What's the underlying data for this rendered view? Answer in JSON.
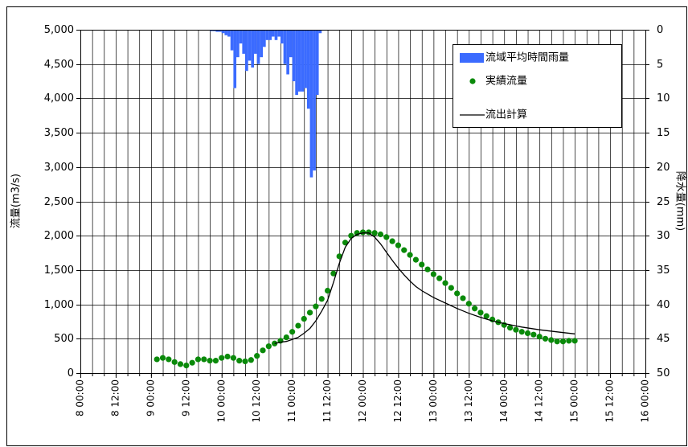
{
  "chart_data": {
    "type": "combo",
    "y_label": "流量(m3/s)",
    "y2_label": "降水量(mm)",
    "xlim": [
      "8 00:00",
      "16 00:00"
    ],
    "xticks": [
      "8 00:00",
      "8 12:00",
      "9 00:00",
      "9 12:00",
      "10 00:00",
      "10 12:00",
      "11 00:00",
      "11 12:00",
      "12 00:00",
      "12 12:00",
      "13 00:00",
      "13 12:00",
      "14 00:00",
      "14 12:00",
      "15 00:00",
      "15 12:00",
      "16 00:00"
    ],
    "xgrid": [
      "8 00:00",
      "8 04:00",
      "8 08:00",
      "8 12:00",
      "8 16:00",
      "8 20:00",
      "9 00:00",
      "9 04:00",
      "9 08:00",
      "9 12:00",
      "9 16:00",
      "9 20:00",
      "10 00:00",
      "10 04:00",
      "10 08:00",
      "10 12:00",
      "10 16:00",
      "10 20:00",
      "11 00:00",
      "11 04:00",
      "11 08:00",
      "11 12:00",
      "11 16:00",
      "11 20:00",
      "12 00:00",
      "12 04:00",
      "12 08:00",
      "12 12:00",
      "12 16:00",
      "12 20:00",
      "13 00:00",
      "13 04:00",
      "13 08:00",
      "13 12:00",
      "13 16:00",
      "13 20:00",
      "14 00:00",
      "14 04:00",
      "14 08:00",
      "14 12:00",
      "14 16:00",
      "14 20:00",
      "15 00:00",
      "15 04:00",
      "15 08:00",
      "15 12:00",
      "15 16:00",
      "15 20:00",
      "16 00:00"
    ],
    "ylim": [
      0,
      5000
    ],
    "yticks": [
      0,
      {
        "value": 500,
        "label": "500"
      },
      {
        "value": 1000,
        "label": "1,000"
      },
      {
        "value": 1500,
        "label": "1,500"
      },
      {
        "value": 2000,
        "label": "2,000"
      },
      {
        "value": 2500,
        "label": "2,500"
      },
      {
        "value": 3000,
        "label": "3,000"
      },
      {
        "value": 3500,
        "label": "3,500"
      },
      {
        "value": 4000,
        "label": "4,000"
      },
      {
        "value": 4500,
        "label": "4,500"
      },
      {
        "value": 5000,
        "label": "5,000"
      }
    ],
    "y2lim": [
      0,
      50
    ],
    "y2_inverted": true,
    "y2ticks": [
      0,
      5,
      10,
      15,
      20,
      25,
      30,
      35,
      40,
      45,
      50
    ],
    "grid": true,
    "series": [
      {
        "name": "流域平均時間雨量",
        "type": "bar",
        "axis": "y2",
        "color": "#3b6bff",
        "x": [
          "9 20:00",
          "9 21:00",
          "9 22:00",
          "9 23:00",
          "10 00:00",
          "10 01:00",
          "10 02:00",
          "10 03:00",
          "10 04:00",
          "10 05:00",
          "10 06:00",
          "10 07:00",
          "10 08:00",
          "10 09:00",
          "10 10:00",
          "10 11:00",
          "10 12:00",
          "10 13:00",
          "10 14:00",
          "10 15:00",
          "10 16:00",
          "10 17:00",
          "10 18:00",
          "10 19:00",
          "10 20:00",
          "10 21:00",
          "10 22:00",
          "10 23:00",
          "11 00:00",
          "11 01:00",
          "11 02:00",
          "11 03:00",
          "11 04:00",
          "11 05:00",
          "11 06:00",
          "11 07:00",
          "11 08:00",
          "11 09:00"
        ],
        "values": [
          0.2,
          0.2,
          0.3,
          0.3,
          0.5,
          0.8,
          1,
          3,
          8.5,
          4,
          2,
          3.5,
          6,
          4.5,
          5.5,
          3.5,
          5,
          4,
          2.5,
          1.5,
          1.5,
          1,
          1.5,
          1,
          2,
          5,
          6.5,
          4,
          7.5,
          9.5,
          9,
          9,
          8.5,
          11.5,
          21.5,
          20.5,
          9.5,
          0.5
        ]
      },
      {
        "name": "実績流量",
        "type": "scatter",
        "color": "#0a8a0a",
        "x": [
          "9 02:00",
          "9 04:00",
          "9 06:00",
          "9 08:00",
          "9 10:00",
          "9 12:00",
          "9 14:00",
          "9 16:00",
          "9 18:00",
          "9 20:00",
          "9 22:00",
          "10 00:00",
          "10 02:00",
          "10 04:00",
          "10 06:00",
          "10 08:00",
          "10 10:00",
          "10 12:00",
          "10 14:00",
          "10 16:00",
          "10 18:00",
          "10 20:00",
          "10 22:00",
          "11 00:00",
          "11 02:00",
          "11 04:00",
          "11 06:00",
          "11 08:00",
          "11 10:00",
          "11 12:00",
          "11 14:00",
          "11 16:00",
          "11 18:00",
          "11 20:00",
          "11 22:00",
          "12 00:00",
          "12 02:00",
          "12 04:00",
          "12 06:00",
          "12 08:00",
          "12 10:00",
          "12 12:00",
          "12 14:00",
          "12 16:00",
          "12 18:00",
          "12 20:00",
          "12 22:00",
          "13 00:00",
          "13 02:00",
          "13 04:00",
          "13 06:00",
          "13 08:00",
          "13 10:00",
          "13 12:00",
          "13 14:00",
          "13 16:00",
          "13 18:00",
          "13 20:00",
          "13 22:00",
          "14 00:00",
          "14 02:00",
          "14 04:00",
          "14 06:00",
          "14 08:00",
          "14 10:00",
          "14 12:00",
          "14 14:00",
          "14 16:00",
          "14 18:00",
          "14 20:00",
          "14 22:00",
          "15 00:00"
        ],
        "values": [
          200,
          220,
          200,
          160,
          130,
          110,
          150,
          200,
          200,
          180,
          180,
          220,
          240,
          220,
          180,
          170,
          190,
          250,
          330,
          390,
          430,
          470,
          520,
          600,
          690,
          790,
          880,
          970,
          1080,
          1200,
          1450,
          1700,
          1900,
          2000,
          2040,
          2050,
          2050,
          2040,
          2020,
          1980,
          1920,
          1860,
          1790,
          1720,
          1650,
          1580,
          1510,
          1440,
          1380,
          1310,
          1240,
          1160,
          1090,
          1010,
          940,
          880,
          830,
          780,
          740,
          700,
          660,
          630,
          600,
          580,
          560,
          530,
          500,
          480,
          460,
          460,
          470,
          470
        ]
      },
      {
        "name": "流出計算",
        "type": "line",
        "color": "#000000",
        "x": [
          "10 18:00",
          "10 20:00",
          "10 22:00",
          "11 00:00",
          "11 02:00",
          "11 04:00",
          "11 06:00",
          "11 08:00",
          "11 10:00",
          "11 12:00",
          "11 14:00",
          "11 16:00",
          "11 18:00",
          "11 20:00",
          "11 22:00",
          "12 00:00",
          "12 02:00",
          "12 04:00",
          "12 06:00",
          "12 08:00",
          "12 10:00",
          "12 12:00",
          "12 14:00",
          "12 16:00",
          "12 18:00",
          "12 20:00",
          "12 22:00",
          "13 00:00",
          "13 04:00",
          "13 08:00",
          "13 12:00",
          "13 16:00",
          "13 20:00",
          "14 00:00",
          "14 06:00",
          "14 12:00",
          "14 18:00",
          "15 00:00"
        ],
        "values": [
          430,
          450,
          460,
          490,
          520,
          580,
          650,
          760,
          900,
          1060,
          1320,
          1600,
          1830,
          1960,
          2020,
          2040,
          2040,
          1980,
          1880,
          1760,
          1640,
          1530,
          1430,
          1340,
          1260,
          1200,
          1150,
          1100,
          1020,
          940,
          870,
          810,
          760,
          720,
          670,
          630,
          600,
          570
        ]
      }
    ]
  }
}
